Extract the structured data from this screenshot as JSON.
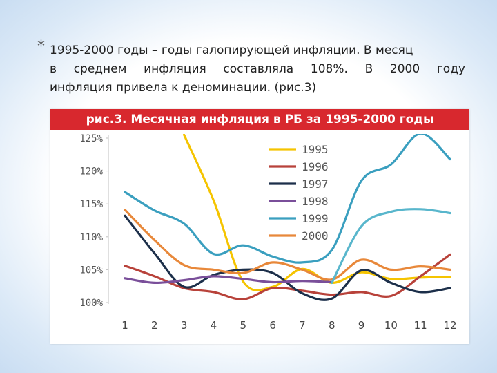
{
  "caption": {
    "star": "*",
    "line1": "1995-2000 годы – годы галопирующей инфляции. В месяц",
    "line2": "в среднем инфляция составляла 108%. В 2000 году",
    "line3": "инфляция привела к деноминации. (рис.3)"
  },
  "chart_data": {
    "type": "line",
    "title": "рис.3. Месячная инфляция в РБ за 1995-2000 годы",
    "xlabel": "",
    "ylabel": "",
    "x": [
      1,
      2,
      3,
      4,
      5,
      6,
      7,
      8,
      9,
      10,
      11,
      12
    ],
    "x_tick_labels": [
      "1",
      "2",
      "3",
      "4",
      "5",
      "6",
      "7",
      "8",
      "9",
      "10",
      "11",
      "12"
    ],
    "y_tick_values": [
      100,
      105,
      110,
      115,
      120,
      125
    ],
    "y_tick_labels": [
      "100%",
      "105%",
      "110%",
      "115%",
      "120%",
      "125%"
    ],
    "ylim": [
      100,
      125
    ],
    "xlim": [
      1,
      12
    ],
    "grid": false,
    "legend_position": "top-right",
    "series": [
      {
        "name": "1995",
        "color": "#f5c400",
        "values": [
          null,
          null,
          125.5,
          115.5,
          103.2,
          102.4,
          105.1,
          103.0,
          104.6,
          103.6,
          103.8,
          103.9
        ]
      },
      {
        "name": "1996",
        "color": "#b8423a",
        "values": [
          105.6,
          104.0,
          102.2,
          101.6,
          100.5,
          102.2,
          101.8,
          101.2,
          101.6,
          101.0,
          104.0,
          107.3
        ]
      },
      {
        "name": "1997",
        "color": "#1c2f4a",
        "values": [
          113.2,
          107.5,
          102.4,
          104.2,
          105.0,
          104.5,
          101.4,
          100.6,
          104.9,
          103.0,
          101.6,
          102.2
        ]
      },
      {
        "name": "1998",
        "color": "#7a4f9a",
        "values": [
          103.7,
          103.0,
          103.4,
          104.0,
          103.6,
          103.1,
          103.3,
          103.1,
          null,
          null,
          null,
          null
        ]
      },
      {
        "name": "1999",
        "color": "#3a9fbf",
        "values": [
          116.8,
          114.0,
          112.0,
          107.4,
          108.7,
          107.0,
          106.1,
          108.0,
          118.5,
          121.0,
          125.7,
          121.8
        ]
      },
      {
        "name": "2000",
        "color": "#e8883a",
        "values": [
          114.1,
          109.5,
          105.7,
          105.0,
          104.5,
          106.1,
          105.0,
          103.5,
          106.5,
          105.0,
          105.5,
          105.0
        ]
      },
      {
        "name": "",
        "color": "#58b6cc",
        "values": [
          null,
          null,
          null,
          null,
          null,
          null,
          null,
          103.0,
          111.6,
          113.8,
          114.2,
          113.6
        ]
      }
    ]
  }
}
